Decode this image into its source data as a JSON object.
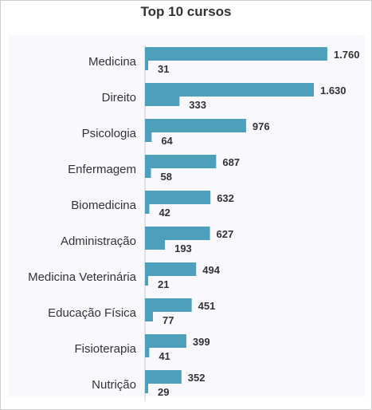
{
  "chart_data": {
    "type": "bar",
    "orientation": "horizontal",
    "title": "Top 10 cursos",
    "categories": [
      "Medicina",
      "Direito",
      "Psicologia",
      "Enfermagem",
      "Biomedicina",
      "Administração",
      "Medicina Veterinária",
      "Educação Física",
      "Fisioterapia",
      "Nutrição"
    ],
    "series": [
      {
        "values": [
          1760,
          1630,
          976,
          687,
          632,
          627,
          494,
          451,
          399,
          352
        ],
        "labels": [
          "1.760",
          "1.630",
          "976",
          "687",
          "632",
          "627",
          "494",
          "451",
          "399",
          "352"
        ],
        "color": "#4d9fbb"
      },
      {
        "values": [
          31,
          333,
          64,
          58,
          42,
          193,
          21,
          77,
          41,
          29
        ],
        "labels": [
          "31",
          "333",
          "64",
          "58",
          "42",
          "193",
          "21",
          "77",
          "41",
          "29"
        ],
        "color": "#4d9fbb"
      }
    ],
    "xlim": [
      0,
      1830
    ],
    "grid": false,
    "legend": "none"
  }
}
